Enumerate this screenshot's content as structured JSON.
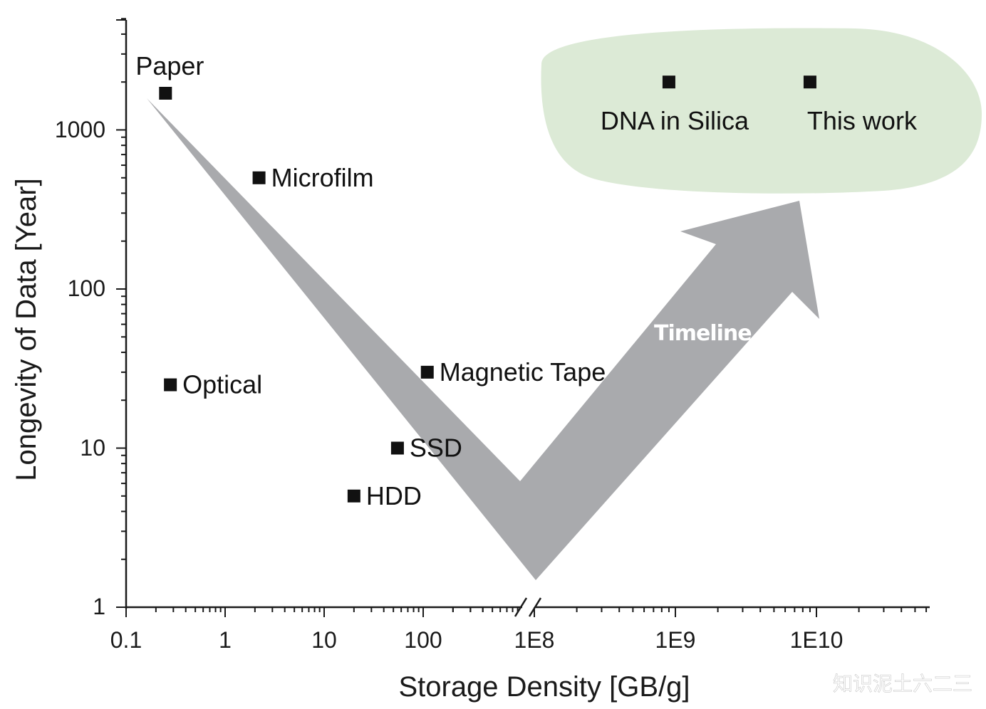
{
  "chart_data": {
    "type": "scatter",
    "xlabel": "Storage Density [GB/g]",
    "ylabel": "Longevity of Data [Year]",
    "x_scale": "log (broken axis between 100 and 1E8)",
    "y_scale": "log",
    "ylim": [
      1,
      5000
    ],
    "x_ticks": [
      "0.1",
      "1",
      "10",
      "100",
      "1E8",
      "1E9",
      "1E10"
    ],
    "y_ticks": [
      "1",
      "10",
      "100",
      "1000"
    ],
    "points": [
      {
        "label": "Paper",
        "x": 0.25,
        "y": 1700
      },
      {
        "label": "Microfilm",
        "x": 2.2,
        "y": 500
      },
      {
        "label": "Optical",
        "x": 0.28,
        "y": 25
      },
      {
        "label": "Magnetic Tape",
        "x": 110,
        "y": 30
      },
      {
        "label": "SSD",
        "x": 55,
        "y": 10
      },
      {
        "label": "HDD",
        "x": 20,
        "y": 5
      },
      {
        "label": "DNA in Silica",
        "x": 900000000,
        "y": 2000
      },
      {
        "label": "This work",
        "x": 9000000000,
        "y": 2000
      }
    ],
    "annotation": "Timeline",
    "highlight_region_color": "#dcead6",
    "arrow_color": "#a9aaad",
    "marker_color": "#111111"
  },
  "watermark": "知识泥土六二三"
}
